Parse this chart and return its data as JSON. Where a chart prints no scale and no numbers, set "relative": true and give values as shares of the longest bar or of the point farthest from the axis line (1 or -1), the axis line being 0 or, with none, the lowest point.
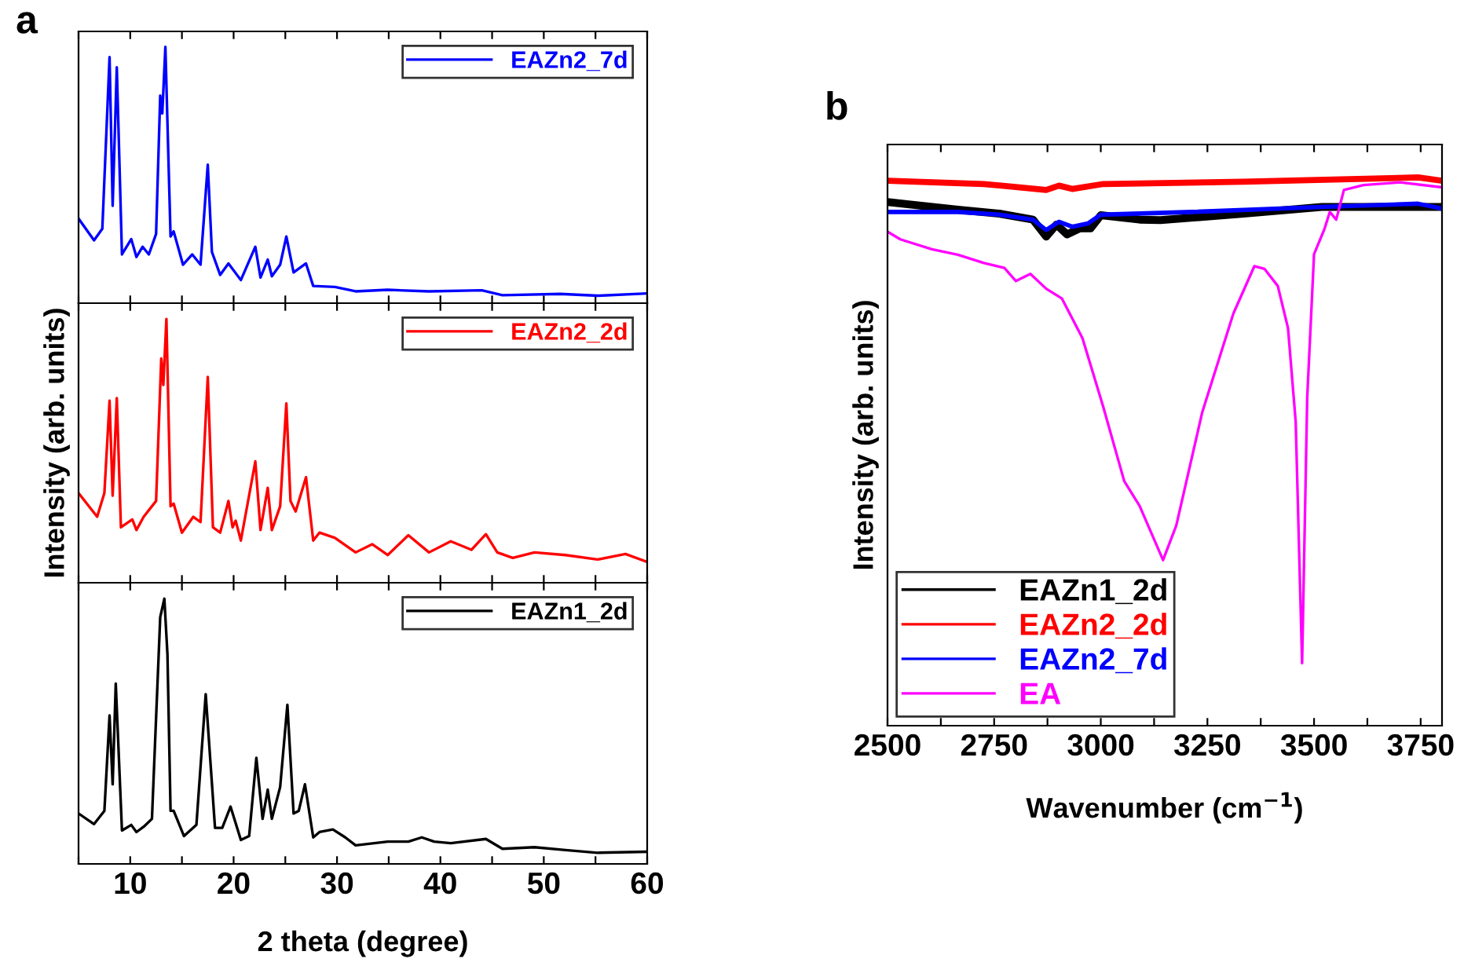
{
  "chart_data": [
    {
      "type": "line",
      "relative": true,
      "legend": "top right",
      "tick_labels": false,
      "xlim": [
        5,
        60
      ],
      "xticks": [
        {
          "value": 5,
          "label": null
        },
        10,
        {
          "value": 15,
          "label": null
        },
        20,
        {
          "value": 25,
          "label": null
        },
        30,
        {
          "value": 35,
          "label": null
        },
        40,
        {
          "value": 45,
          "label": null
        },
        50,
        {
          "value": 55,
          "label": null
        },
        60
      ],
      "annotations": [
        "a"
      ],
      "series": [
        {
          "name": "EAZn2_7d",
          "color": "#0000ff",
          "x": [
            5.0,
            6.5,
            7.3,
            8.0,
            8.3,
            8.7,
            9.2,
            10.1,
            10.6,
            11.2,
            11.8,
            12.5,
            12.9,
            13.1,
            13.4,
            13.9,
            14.2,
            15.1,
            16.0,
            16.8,
            17.5,
            17.9,
            18.7,
            19.5,
            20.7,
            22.1,
            22.6,
            23.3,
            23.7,
            24.5,
            25.1,
            25.8,
            27.0,
            27.7,
            29.8,
            31.8,
            34.9,
            38.9,
            44.0,
            46.0,
            51.6,
            55.2,
            60
          ],
          "values": [
            0.33,
            0.245,
            0.29,
            0.96,
            0.38,
            0.92,
            0.19,
            0.25,
            0.18,
            0.22,
            0.19,
            0.27,
            0.81,
            0.74,
            1.0,
            0.26,
            0.28,
            0.15,
            0.19,
            0.15,
            0.54,
            0.2,
            0.11,
            0.155,
            0.09,
            0.22,
            0.1,
            0.17,
            0.105,
            0.15,
            0.26,
            0.12,
            0.155,
            0.067,
            0.063,
            0.046,
            0.052,
            0.046,
            0.05,
            0.031,
            0.036,
            0.029,
            0.038
          ]
        }
      ]
    },
    {
      "type": "line",
      "relative": true,
      "legend": "top right",
      "tick_labels": false,
      "xlim": [
        5,
        60
      ],
      "xticks": [
        {
          "value": 5,
          "label": null
        },
        10,
        {
          "value": 15,
          "label": null
        },
        20,
        {
          "value": 25,
          "label": null
        },
        30,
        {
          "value": 35,
          "label": null
        },
        40,
        {
          "value": 45,
          "label": null
        },
        50,
        {
          "value": 55,
          "label": null
        },
        60
      ],
      "ylabel": "Intensity (arb. units)",
      "series": [
        {
          "name": "EAZn2_2d",
          "color": "#ff0000",
          "x": [
            5.0,
            6.8,
            7.5,
            8.0,
            8.3,
            8.7,
            9.1,
            10.2,
            10.6,
            11.3,
            12.5,
            13.0,
            13.2,
            13.5,
            13.9,
            14.2,
            15.0,
            16.1,
            16.8,
            17.5,
            18.0,
            18.7,
            19.5,
            19.9,
            20.2,
            20.7,
            22.1,
            22.6,
            23.3,
            23.7,
            24.5,
            25.1,
            25.5,
            26.0,
            27.0,
            27.7,
            28.3,
            29.8,
            31.8,
            33.4,
            34.9,
            36.9,
            38.9,
            41.0,
            43.0,
            44.4,
            45.5,
            47.0,
            49.1,
            52.1,
            55.2,
            57.9,
            60
          ],
          "values": [
            0.34,
            0.25,
            0.34,
            0.69,
            0.33,
            0.7,
            0.21,
            0.24,
            0.2,
            0.25,
            0.31,
            0.85,
            0.75,
            1.0,
            0.29,
            0.3,
            0.19,
            0.25,
            0.23,
            0.78,
            0.21,
            0.19,
            0.31,
            0.21,
            0.235,
            0.16,
            0.46,
            0.2,
            0.36,
            0.2,
            0.29,
            0.68,
            0.31,
            0.27,
            0.4,
            0.16,
            0.19,
            0.17,
            0.115,
            0.146,
            0.105,
            0.18,
            0.115,
            0.157,
            0.125,
            0.184,
            0.115,
            0.094,
            0.115,
            0.105,
            0.088,
            0.109,
            0.079
          ]
        }
      ]
    },
    {
      "type": "line",
      "relative": true,
      "legend": "top right",
      "tick_labels": "x",
      "xlim": [
        5,
        60
      ],
      "xticks": [
        {
          "value": 5,
          "label": null
        },
        10,
        {
          "value": 15,
          "label": null
        },
        20,
        {
          "value": 25,
          "label": null
        },
        30,
        {
          "value": 35,
          "label": null
        },
        40,
        {
          "value": 45,
          "label": null
        },
        50,
        {
          "value": 55,
          "label": null
        },
        60
      ],
      "xlabel": "2 theta (degree)",
      "series": [
        {
          "name": "EAZn1_2d",
          "color": "#000000",
          "x": [
            5.0,
            6.5,
            7.5,
            8.0,
            8.3,
            8.6,
            9.2,
            10.1,
            10.6,
            11.3,
            12.1,
            12.9,
            13.3,
            13.6,
            13.9,
            14.2,
            15.2,
            16.4,
            17.3,
            18.2,
            18.9,
            19.7,
            20.7,
            21.5,
            22.2,
            22.8,
            23.3,
            23.7,
            24.5,
            25.2,
            25.8,
            26.3,
            26.9,
            27.7,
            28.3,
            29.6,
            30.8,
            31.8,
            34.9,
            36.9,
            38.2,
            39.4,
            41.0,
            44.4,
            46.0,
            49.1,
            52.1,
            55.2,
            60
          ],
          "values": [
            0.19,
            0.15,
            0.2,
            0.56,
            0.3,
            0.68,
            0.126,
            0.147,
            0.12,
            0.14,
            0.17,
            0.93,
            1.0,
            0.79,
            0.2,
            0.2,
            0.105,
            0.147,
            0.64,
            0.136,
            0.136,
            0.216,
            0.09,
            0.105,
            0.4,
            0.17,
            0.28,
            0.17,
            0.29,
            0.6,
            0.19,
            0.2,
            0.3,
            0.1,
            0.12,
            0.13,
            0.1,
            0.07,
            0.084,
            0.084,
            0.1,
            0.084,
            0.078,
            0.094,
            0.057,
            0.063,
            0.052,
            0.042,
            0.046
          ]
        }
      ]
    },
    {
      "type": "line",
      "relative": true,
      "legend": "bottom left",
      "tick_labels": "x",
      "xlim": [
        2500,
        3800
      ],
      "xticks": [
        2500,
        {
          "value": 2625,
          "label": null
        },
        2750,
        {
          "value": 2875,
          "label": null
        },
        3000,
        {
          "value": 3125,
          "label": null
        },
        3250,
        {
          "value": 3375,
          "label": null
        },
        3500,
        {
          "value": 3625,
          "label": null
        },
        3750
      ],
      "xlabel": "Wavenumber (cm$^{−1}$)",
      "ylabel": "Intensity (arb. units)",
      "annotations": [
        "b"
      ],
      "series": [
        {
          "name": "EAZn1_2d",
          "color": "#000000",
          "x": [
            2500,
            2665,
            2762,
            2841,
            2872,
            2896,
            2921,
            2951,
            2976,
            3000,
            3091,
            3140,
            3335,
            3518,
            3800
          ],
          "values": [
            0.955,
            0.941,
            0.934,
            0.923,
            0.892,
            0.914,
            0.896,
            0.907,
            0.907,
            0.931,
            0.923,
            0.922,
            0.934,
            0.946,
            0.946
          ]
        },
        {
          "name": "EAZn2_2d",
          "color": "#ff0000",
          "x": [
            2500,
            2726,
            2872,
            2902,
            2933,
            3006,
            3335,
            3744,
            3800
          ],
          "values": [
            0.994,
            0.988,
            0.977,
            0.985,
            0.979,
            0.988,
            0.992,
            1.0,
            0.994
          ]
        },
        {
          "name": "EAZn2_7d",
          "color": "#0000ff",
          "x": [
            2500,
            2665,
            2762,
            2841,
            2872,
            2902,
            2933,
            2970,
            3000,
            3213,
            3518,
            3744,
            3800
          ],
          "values": [
            0.937,
            0.937,
            0.932,
            0.923,
            0.904,
            0.919,
            0.91,
            0.916,
            0.932,
            0.937,
            0.946,
            0.952,
            0.943
          ]
        },
        {
          "name": "EA",
          "color": "#ff00ff",
          "x": [
            2500,
            2530,
            2604,
            2665,
            2726,
            2774,
            2801,
            2835,
            2872,
            2909,
            2957,
            3006,
            3055,
            3091,
            3146,
            3177,
            3238,
            3311,
            3360,
            3384,
            3415,
            3439,
            3457,
            3472,
            3484,
            3500,
            3524,
            3537,
            3552,
            3570,
            3616,
            3701,
            3800
          ],
          "values": [
            0.901,
            0.887,
            0.869,
            0.859,
            0.844,
            0.835,
            0.811,
            0.824,
            0.797,
            0.779,
            0.707,
            0.581,
            0.446,
            0.401,
            0.302,
            0.365,
            0.572,
            0.752,
            0.838,
            0.833,
            0.802,
            0.725,
            0.554,
            0.114,
            0.599,
            0.86,
            0.905,
            0.937,
            0.923,
            0.977,
            0.986,
            0.991,
            0.982
          ]
        }
      ]
    }
  ]
}
